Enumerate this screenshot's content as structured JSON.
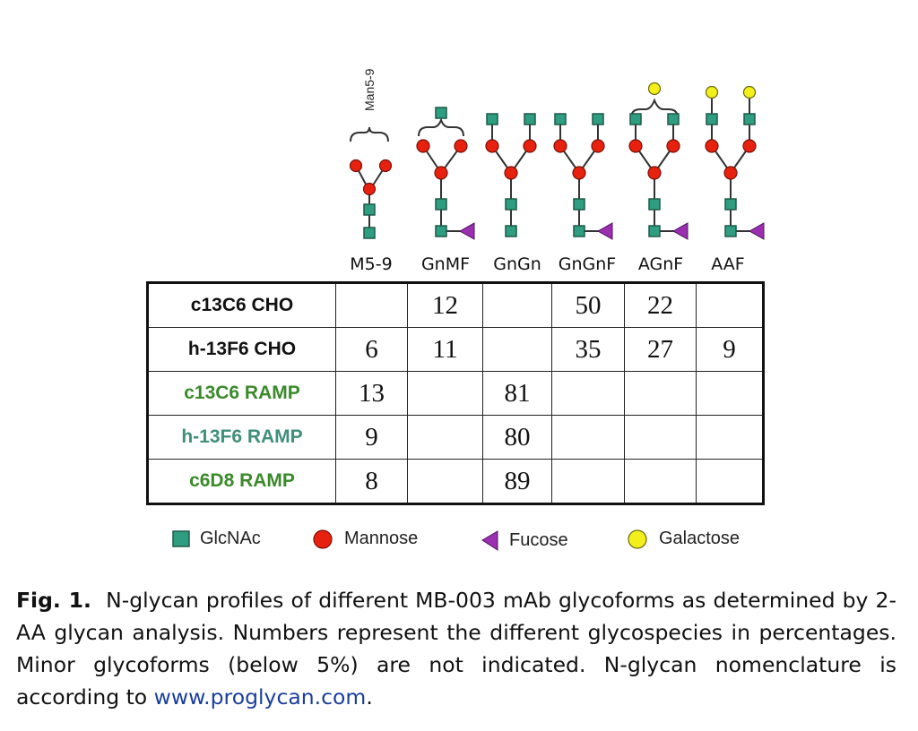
{
  "figure": {
    "bracket_label": "Man5-9",
    "columns": [
      "M5-9",
      "GnMF",
      "GnGn",
      "GnGnF",
      "AGnF",
      "AAF"
    ],
    "rows": [
      {
        "label": "c13C6 CHO",
        "label_color": "#111111",
        "values": [
          "",
          "12",
          "",
          "50",
          "22",
          ""
        ]
      },
      {
        "label": "h-13F6 CHO",
        "label_color": "#111111",
        "values": [
          "6",
          "11",
          "",
          "35",
          "27",
          "9"
        ]
      },
      {
        "label": "c13C6 RAMP",
        "label_color": "#3a8a2a",
        "values": [
          "13",
          "",
          "81",
          "",
          "",
          ""
        ]
      },
      {
        "label": "h-13F6 RAMP",
        "label_color": "#3f8f7a",
        "values": [
          "9",
          "",
          "80",
          "",
          "",
          ""
        ]
      },
      {
        "label": "c6D8 RAMP",
        "label_color": "#3a8a2a",
        "values": [
          "8",
          "",
          "89",
          "",
          "",
          ""
        ]
      }
    ],
    "legend": [
      {
        "icon": "square-icon",
        "label": "GlcNAc",
        "color": "#2f9e80"
      },
      {
        "icon": "circle-icon",
        "label": "Mannose",
        "color": "#e8210f"
      },
      {
        "icon": "triangle-icon",
        "label": "Fucose",
        "color": "#9a2fb0"
      },
      {
        "icon": "circle-icon",
        "label": "Galactose",
        "color": "#f3ef1a"
      }
    ]
  },
  "caption": {
    "fig_label": "Fig. 1.",
    "text": "N-glycan profiles of different MB-003 mAb glycoforms as determined by 2-AA glycan analysis. Numbers represent the different glycospecies in percentages. Minor glycoforms (below 5%) are not indicated. N-glycan nomenclature is according to ",
    "link_text": "www.proglycan.com",
    "after_link": "."
  },
  "colors": {
    "glcnac": "#2f9e80",
    "mannose": "#e8210f",
    "fucose": "#9a2fb0",
    "galactose": "#f3ef1a",
    "link": "#1a3f9c"
  }
}
